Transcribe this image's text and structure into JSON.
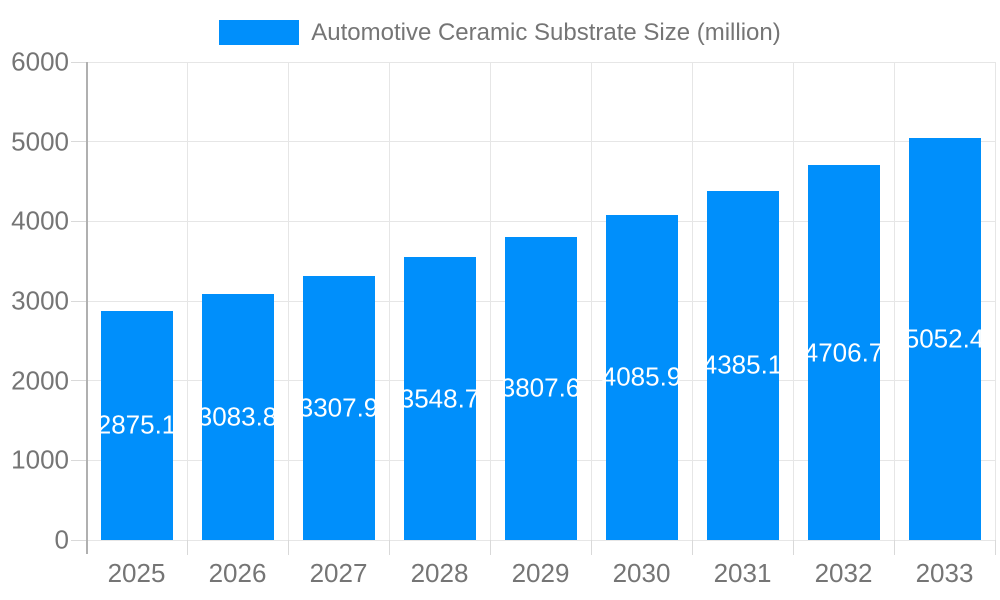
{
  "legend": {
    "label": "Automotive Ceramic Substrate Size (million)"
  },
  "chart_data": {
    "type": "bar",
    "title": "Automotive Ceramic Substrate Size (million)",
    "categories": [
      "2025",
      "2026",
      "2027",
      "2028",
      "2029",
      "2030",
      "2031",
      "2032",
      "2033"
    ],
    "values": [
      2875.1,
      3083.8,
      3307.9,
      3548.7,
      3807.6,
      4085.9,
      4385.1,
      4706.7,
      5052.4
    ],
    "value_labels": [
      "2875.1",
      "3083.8",
      "3307.9",
      "3548.7",
      "3807.6",
      "4085.9",
      "4385.1",
      "4706.7",
      "5052.4"
    ],
    "xlabel": "",
    "ylabel": "",
    "ylim": [
      0,
      6000
    ],
    "yticks": [
      0,
      1000,
      2000,
      3000,
      4000,
      5000,
      6000
    ],
    "grid": true,
    "legend_position": "top-center",
    "bar_label_position": "inside-middle",
    "colors": {
      "bar": "#008FFB",
      "bar_label": "#ffffff",
      "axis_text": "#757575",
      "gridline": "#e6e6e6",
      "tick": "#d9d9d9",
      "axis_line": "#b0b0b0",
      "background": "#ffffff"
    }
  }
}
